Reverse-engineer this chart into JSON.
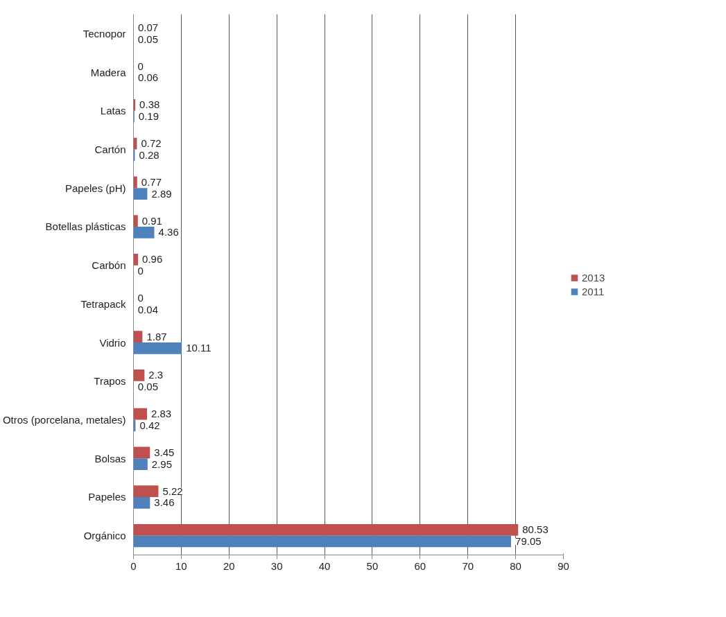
{
  "chart_data": {
    "type": "bar",
    "orientation": "horizontal",
    "categories": [
      "Tecnopor",
      "Madera",
      "Latas",
      "Cartón",
      "Papeles (pH)",
      "Botellas plásticas",
      "Carbón",
      "Tetrapack",
      "Vidrio",
      "Trapos",
      "Otros (porcelana, metales)",
      "Bolsas",
      "Papeles",
      "Orgánico"
    ],
    "series": [
      {
        "name": "2013",
        "color": "#c0504d",
        "values": [
          0.07,
          0,
          0.38,
          0.72,
          0.77,
          0.91,
          0.96,
          0,
          1.87,
          2.3,
          2.83,
          3.45,
          5.22,
          80.53
        ]
      },
      {
        "name": "2011",
        "color": "#4f81bd",
        "values": [
          0.05,
          0.06,
          0.19,
          0.28,
          2.89,
          4.36,
          0,
          0.04,
          10.11,
          0.05,
          0.42,
          2.95,
          3.46,
          79.05
        ]
      }
    ],
    "xlim": [
      0,
      90
    ],
    "xticks": [
      0,
      10,
      20,
      30,
      40,
      50,
      60,
      70,
      80,
      90
    ],
    "grid": "x",
    "legend": "right",
    "data_labels": true
  }
}
